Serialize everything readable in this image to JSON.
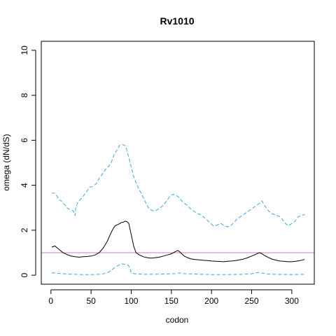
{
  "chart_data": {
    "type": "line",
    "title": "Rv1010",
    "xlabel": "codon",
    "ylabel": "omega (dN/dS)",
    "xlim": [
      -12,
      328
    ],
    "ylim": [
      -0.4,
      10.4
    ],
    "xticks": [
      0,
      50,
      100,
      150,
      200,
      250,
      300
    ],
    "yticks": [
      0,
      2,
      4,
      6,
      8,
      10
    ],
    "reference_line": {
      "y": 1.0,
      "color": "#cc79c0"
    },
    "series": [
      {
        "role": "upper",
        "style": "dashed",
        "color": "#3aa7e0",
        "x": [
          1,
          5,
          8,
          10,
          13,
          15,
          18,
          20,
          22,
          25,
          28,
          30,
          31,
          33,
          36,
          40,
          44,
          48,
          52,
          56,
          60,
          64,
          68,
          72,
          75,
          78,
          82,
          86,
          88,
          90,
          93,
          95,
          98,
          100,
          103,
          106,
          110,
          113,
          117,
          120,
          122,
          125,
          128,
          132,
          136,
          140,
          144,
          148,
          152,
          156,
          160,
          163,
          166,
          170,
          174,
          178,
          182,
          186,
          190,
          193,
          196,
          199,
          202,
          205,
          208,
          212,
          216,
          220,
          224,
          228,
          232,
          236,
          240,
          244,
          248,
          252,
          256,
          260,
          263,
          266,
          270,
          274,
          278,
          282,
          285,
          288,
          292,
          296,
          300,
          304,
          308,
          312,
          316
        ],
        "y": [
          3.65,
          3.65,
          3.5,
          3.35,
          3.3,
          3.2,
          3.1,
          3.0,
          2.95,
          2.9,
          2.85,
          2.65,
          3.0,
          3.2,
          3.35,
          3.5,
          3.7,
          3.9,
          3.95,
          4.05,
          4.3,
          4.5,
          4.7,
          4.85,
          5.0,
          5.3,
          5.55,
          5.8,
          5.8,
          5.8,
          5.75,
          5.5,
          5.1,
          4.8,
          4.4,
          4.1,
          3.8,
          3.6,
          3.3,
          3.1,
          2.95,
          2.9,
          2.85,
          2.9,
          3.0,
          3.1,
          3.3,
          3.5,
          3.6,
          3.55,
          3.45,
          3.3,
          3.2,
          3.1,
          2.95,
          2.85,
          2.75,
          2.7,
          2.6,
          2.5,
          2.4,
          2.3,
          2.2,
          2.2,
          2.25,
          2.3,
          2.2,
          2.15,
          2.2,
          2.35,
          2.5,
          2.6,
          2.7,
          2.8,
          2.9,
          3.0,
          3.1,
          3.2,
          3.3,
          3.1,
          2.9,
          2.75,
          2.7,
          2.65,
          2.6,
          2.5,
          2.3,
          2.2,
          2.3,
          2.4,
          2.6,
          2.65,
          2.7
        ]
      },
      {
        "role": "estimate",
        "style": "solid",
        "color": "#000000",
        "x": [
          1,
          5,
          10,
          15,
          20,
          25,
          30,
          35,
          40,
          45,
          50,
          55,
          60,
          65,
          70,
          75,
          78,
          80,
          83,
          86,
          88,
          90,
          92,
          95,
          97,
          100,
          103,
          106,
          110,
          115,
          120,
          125,
          130,
          135,
          140,
          145,
          150,
          155,
          158,
          160,
          163,
          166,
          170,
          175,
          180,
          185,
          190,
          195,
          200,
          205,
          210,
          215,
          220,
          225,
          230,
          235,
          240,
          245,
          250,
          255,
          258,
          260,
          263,
          266,
          270,
          275,
          280,
          285,
          290,
          295,
          300,
          305,
          310,
          316
        ],
        "y": [
          1.25,
          1.3,
          1.15,
          1.0,
          0.92,
          0.85,
          0.82,
          0.8,
          0.82,
          0.83,
          0.85,
          0.9,
          1.0,
          1.2,
          1.5,
          1.9,
          2.1,
          2.2,
          2.25,
          2.3,
          2.35,
          2.35,
          2.4,
          2.38,
          2.3,
          1.8,
          1.3,
          1.0,
          0.9,
          0.82,
          0.78,
          0.76,
          0.78,
          0.8,
          0.85,
          0.9,
          0.95,
          1.05,
          1.1,
          1.05,
          0.95,
          0.85,
          0.78,
          0.72,
          0.7,
          0.68,
          0.66,
          0.65,
          0.63,
          0.62,
          0.61,
          0.6,
          0.62,
          0.63,
          0.65,
          0.68,
          0.72,
          0.78,
          0.85,
          0.93,
          0.98,
          1.0,
          0.95,
          0.88,
          0.8,
          0.72,
          0.67,
          0.63,
          0.62,
          0.6,
          0.6,
          0.62,
          0.65,
          0.7
        ]
      },
      {
        "role": "lower",
        "style": "dashed",
        "color": "#3aa7e0",
        "x": [
          1,
          5,
          10,
          20,
          30,
          40,
          50,
          60,
          65,
          70,
          75,
          78,
          82,
          85,
          88,
          90,
          93,
          96,
          98,
          100,
          105,
          120,
          140,
          155,
          160,
          165,
          180,
          200,
          220,
          240,
          250,
          255,
          258,
          262,
          270,
          280,
          300,
          316
        ],
        "y": [
          0.1,
          0.1,
          0.08,
          0.05,
          0.04,
          0.03,
          0.03,
          0.04,
          0.06,
          0.1,
          0.2,
          0.3,
          0.4,
          0.45,
          0.5,
          0.5,
          0.48,
          0.45,
          0.35,
          0.1,
          0.06,
          0.04,
          0.05,
          0.07,
          0.1,
          0.07,
          0.05,
          0.03,
          0.03,
          0.04,
          0.06,
          0.1,
          0.12,
          0.1,
          0.05,
          0.04,
          0.03,
          0.04
        ]
      }
    ],
    "grid": false,
    "legend": "none"
  }
}
